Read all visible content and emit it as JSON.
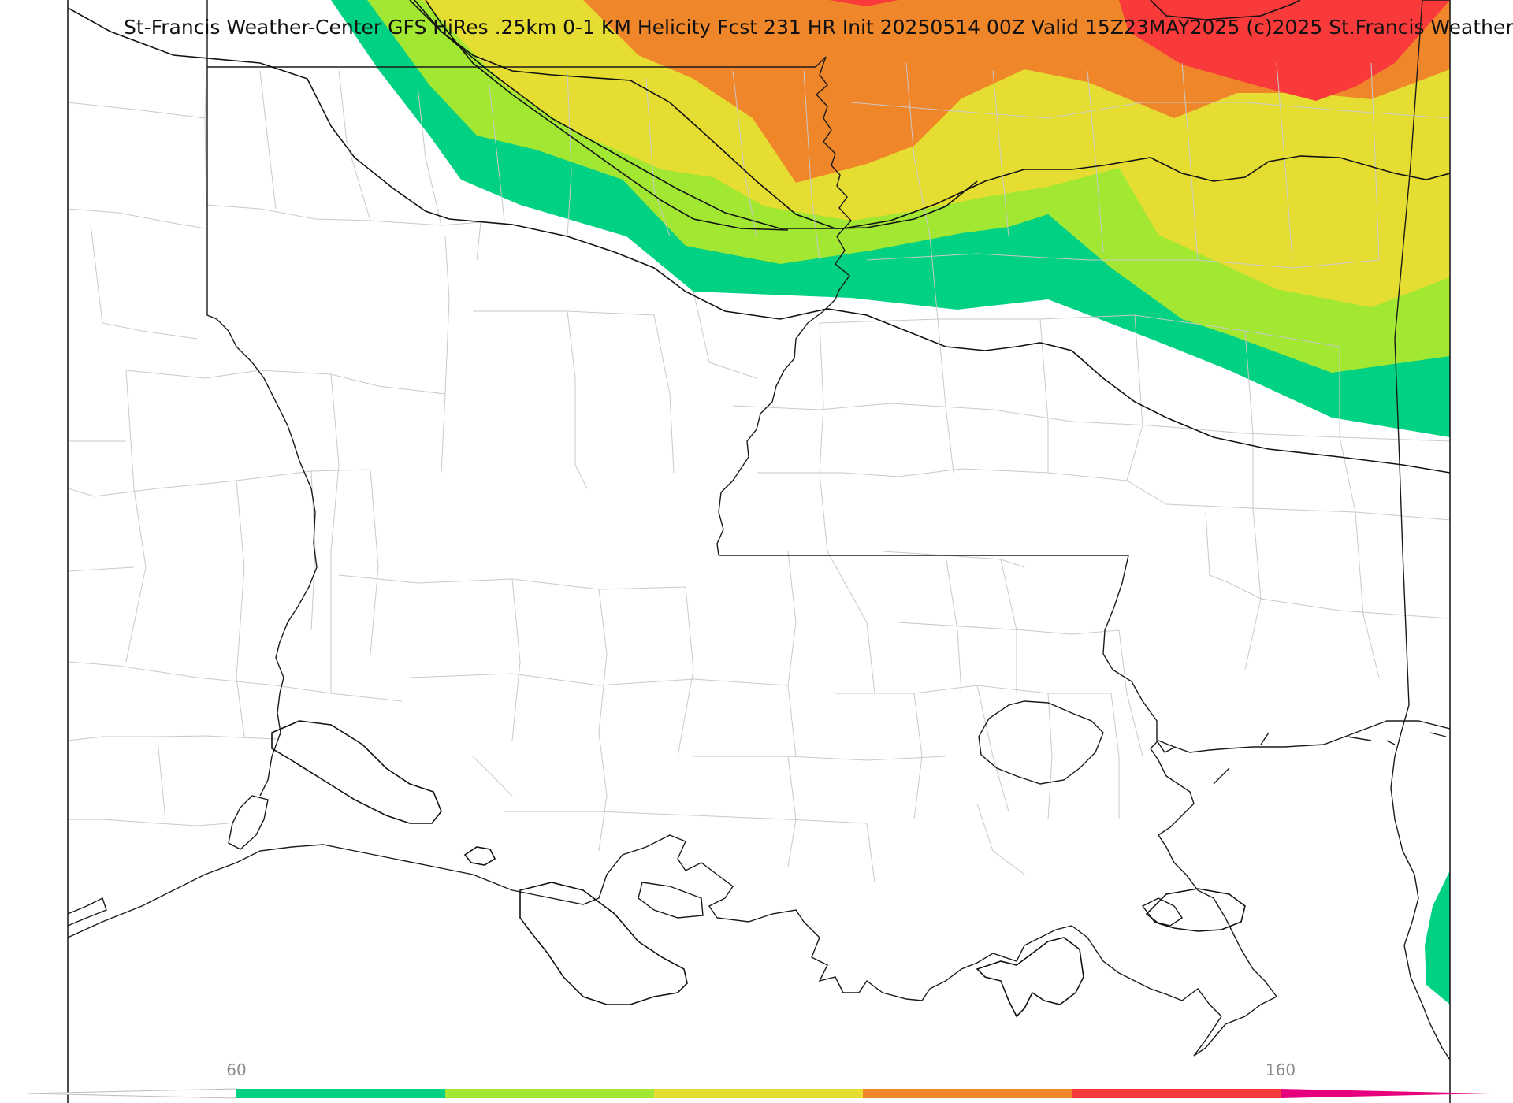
{
  "title": "St-Francis Weather-Center GFS HiRes .25km 0-1 KM Helicity Fcst 231 HR Init 20250514 00Z  Valid 15Z23MAY2025    (c)2025 St.Francis Weather",
  "colors": {
    "band_green": "#00d182",
    "band_lime": "#a2e732",
    "band_yellow": "#e6dd32",
    "band_orange": "#f0862a",
    "band_red": "#f83a3a",
    "band_magenta": "#e6007e",
    "background": "#ffffff",
    "county_lines": "#c9c9c9",
    "state_lines": "#1a1a1a"
  },
  "colorbar": {
    "labels": [
      "60",
      "160"
    ],
    "segments": [
      "#00d182",
      "#a2e732",
      "#e6dd32",
      "#f0862a",
      "#f83a3a",
      "#e6007e"
    ]
  }
}
